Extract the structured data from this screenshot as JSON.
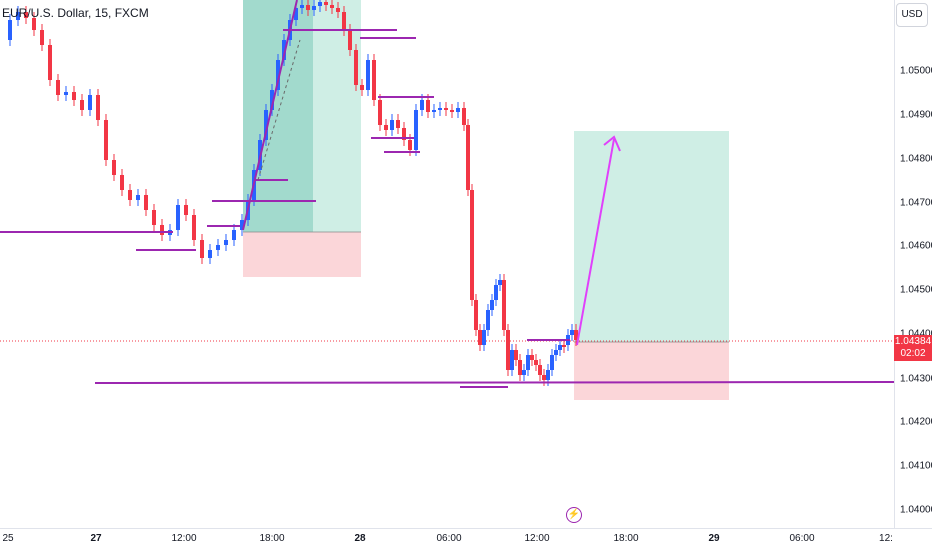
{
  "symbol_title": "EUR/U.S. Dollar, 15, FXCM",
  "currency_button": "USD",
  "current_price": {
    "value": "1.04384",
    "countdown": "02:02"
  },
  "price_axis": [
    "1.05000",
    "1.04900",
    "1.04800",
    "1.04700",
    "1.04600",
    "1.04500",
    "1.04400",
    "1.04300",
    "1.04200",
    "1.04100",
    "1.04000"
  ],
  "time_axis": [
    "25",
    "27",
    "12:00",
    "18:00",
    "28",
    "06:00",
    "12:00",
    "18:00",
    "29",
    "06:00",
    "12:"
  ],
  "event_icon": "lightning-bolt-icon",
  "colors": {
    "bull": "#2962ff",
    "bear": "#f23645",
    "drawing": "#9c27b0",
    "target_zone": "#cfeee5",
    "stop_zone": "#fbd6d9",
    "target_zone_active": "#92d3c4"
  }
}
